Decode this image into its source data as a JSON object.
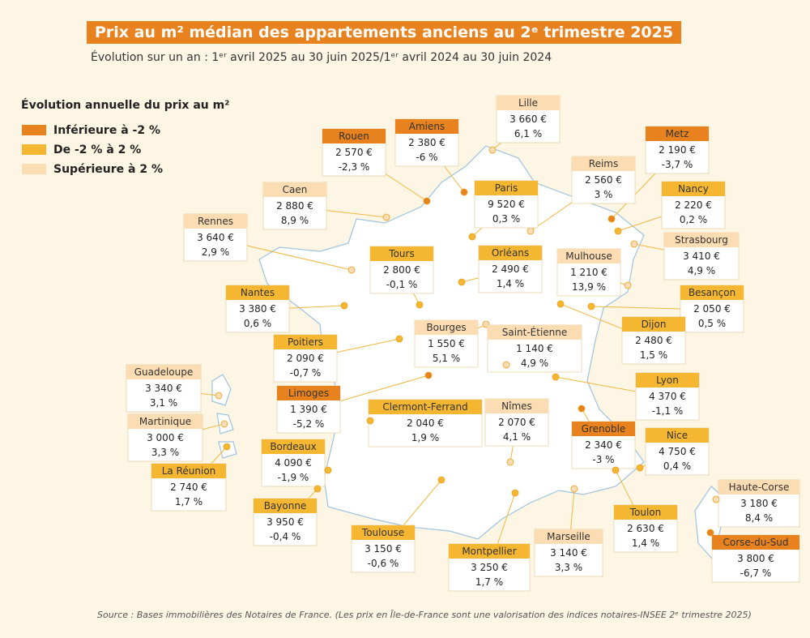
{
  "header": {
    "title": "Prix au m² médian des appartements anciens au 2ᵉ trimestre 2025",
    "subtitle": "Évolution sur un an : 1ᵉʳ avril 2025 au 30 juin 2025/1ᵉʳ avril 2024 au 30 juin 2024"
  },
  "legend": {
    "title": "Évolution annuelle du prix au m²",
    "items": [
      {
        "label": "Inférieure à -2 %",
        "color": "#e8821e"
      },
      {
        "label": "De -2 % à 2 %",
        "color": "#f5b731"
      },
      {
        "label": "Supérieure à 2 %",
        "color": "#fcdcb2"
      }
    ]
  },
  "cities": [
    {
      "name": "Lille",
      "price": "3 660 €",
      "change": "6,1 %",
      "color": "#fcdcb2"
    },
    {
      "name": "Amiens",
      "price": "2 380 €",
      "change": "-6 %",
      "color": "#e8821e"
    },
    {
      "name": "Rouen",
      "price": "2 570 €",
      "change": "-2,3 %",
      "color": "#e8821e"
    },
    {
      "name": "Metz",
      "price": "2 190 €",
      "change": "-3,7 %",
      "color": "#e8821e"
    },
    {
      "name": "Reims",
      "price": "2 560 €",
      "change": "3 %",
      "color": "#fcdcb2"
    },
    {
      "name": "Paris",
      "price": "9 520 €",
      "change": "0,3 %",
      "color": "#f5b731"
    },
    {
      "name": "Caen",
      "price": "2 880 €",
      "change": "8,9 %",
      "color": "#fcdcb2"
    },
    {
      "name": "Nancy",
      "price": "2 220 €",
      "change": "0,2 %",
      "color": "#f5b731"
    },
    {
      "name": "Rennes",
      "price": "3 640 €",
      "change": "2,9 %",
      "color": "#fcdcb2"
    },
    {
      "name": "Strasbourg",
      "price": "3 410 €",
      "change": "4,9 %",
      "color": "#fcdcb2"
    },
    {
      "name": "Tours",
      "price": "2 800 €",
      "change": "-0,1 %",
      "color": "#f5b731"
    },
    {
      "name": "Orléans",
      "price": "2 490 €",
      "change": "1,4 %",
      "color": "#f5b731"
    },
    {
      "name": "Mulhouse",
      "price": "1 210 €",
      "change": "13,9 %",
      "color": "#fcdcb2"
    },
    {
      "name": "Nantes",
      "price": "3 380 €",
      "change": "0,6 %",
      "color": "#f5b731"
    },
    {
      "name": "Besançon",
      "price": "2 050 €",
      "change": "0,5 %",
      "color": "#f5b731"
    },
    {
      "name": "Bourges",
      "price": "1 550 €",
      "change": "5,1 %",
      "color": "#fcdcb2"
    },
    {
      "name": "Dijon",
      "price": "2 480 €",
      "change": "1,5 %",
      "color": "#f5b731"
    },
    {
      "name": "Poitiers",
      "price": "2 090 €",
      "change": "-0,7 %",
      "color": "#f5b731"
    },
    {
      "name": "Saint-Étienne",
      "price": "1 140 €",
      "change": "4,9 %",
      "color": "#fcdcb2"
    },
    {
      "name": "Guadeloupe",
      "price": "3 340 €",
      "change": "3,1 %",
      "color": "#fcdcb2"
    },
    {
      "name": "Lyon",
      "price": "4 370 €",
      "change": "-1,1 %",
      "color": "#f5b731"
    },
    {
      "name": "Limoges",
      "price": "1 390 €",
      "change": "-5,2 %",
      "color": "#e8821e"
    },
    {
      "name": "Clermont-Ferrand",
      "price": "2 040 €",
      "change": "1,9 %",
      "color": "#f5b731"
    },
    {
      "name": "Nîmes",
      "price": "2 070 €",
      "change": "4,1 %",
      "color": "#fcdcb2"
    },
    {
      "name": "Martinique",
      "price": "3 000 €",
      "change": "3,3 %",
      "color": "#fcdcb2"
    },
    {
      "name": "Grenoble",
      "price": "2 340 €",
      "change": "-3 %",
      "color": "#e8821e"
    },
    {
      "name": "Nice",
      "price": "4 750 €",
      "change": "0,4 %",
      "color": "#f5b731"
    },
    {
      "name": "Bordeaux",
      "price": "4 090 €",
      "change": "-1,9 %",
      "color": "#f5b731"
    },
    {
      "name": "La Réunion",
      "price": "2 740 €",
      "change": "1,7 %",
      "color": "#f5b731"
    },
    {
      "name": "Haute-Corse",
      "price": "3 180 €",
      "change": "8,4 %",
      "color": "#fcdcb2"
    },
    {
      "name": "Bayonne",
      "price": "3 950 €",
      "change": "-0,4 %",
      "color": "#f5b731"
    },
    {
      "name": "Toulon",
      "price": "2 630 €",
      "change": "1,4 %",
      "color": "#f5b731"
    },
    {
      "name": "Toulouse",
      "price": "3 150 €",
      "change": "-0,6 %",
      "color": "#f5b731"
    },
    {
      "name": "Marseille",
      "price": "3 140 €",
      "change": "3,3 %",
      "color": "#fcdcb2"
    },
    {
      "name": "Corse-du-Sud",
      "price": "3 800 €",
      "change": "-6,7 %",
      "color": "#e8821e"
    },
    {
      "name": "Montpellier",
      "price": "3 250 €",
      "change": "1,7 %",
      "color": "#f5b731"
    }
  ],
  "source": "Source : Bases immobilières des Notaires de France. (Les prix en Île-de-France sont une valorisation des indices notaires-INSEE 2ᵉ trimestre 2025)"
}
